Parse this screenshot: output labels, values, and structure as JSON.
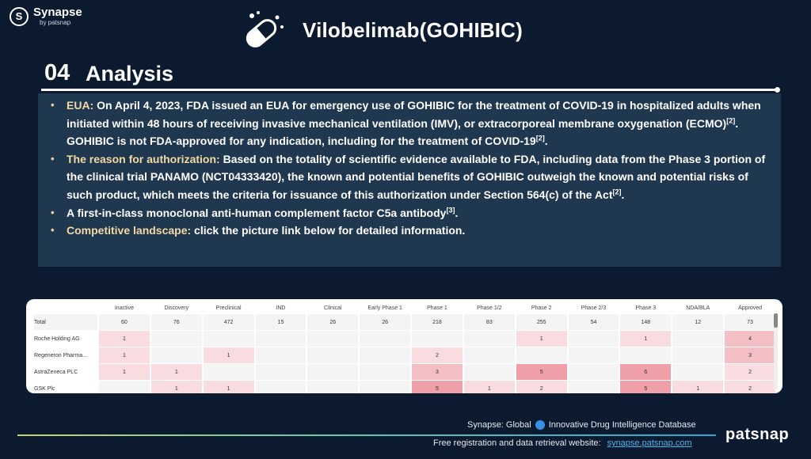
{
  "logo": {
    "mark": "S",
    "name": "Synapse",
    "sub": "by patsnap"
  },
  "title": {
    "icon": "pill-capsule-icon",
    "text": "Vilobelimab(GOHIBIC)"
  },
  "section": {
    "number": "04",
    "name": "Analysis"
  },
  "bullets": [
    {
      "label": "EUA:",
      "text": " On April 4, 2023, FDA issued an EUA for emergency use of GOHIBIC for the treatment of COVID-19 in hospitalized adults when initiated within 48 hours of receiving invasive mechanical ventilation (IMV), or extracorporeal membrane oxygenation (ECMO)",
      "ref1": "[2]",
      "text2": ". GOHIBIC is not FDA-approved for any indication, including for the treatment of COVID-19",
      "ref2": "[2]",
      "text3": "."
    },
    {
      "label": "The reason for authorization:",
      "text": " Based on the totality of scientific evidence available to FDA, including data from the Phase 3 portion of the clinical trial PANAMO (NCT04333420), the known and potential benefits of GOHIBIC outweigh the known and potential risks of such product, which meets the criteria for issuance of this authorization under Section 564(c) of the Act",
      "ref1": "[2]",
      "text2": ".",
      "ref2": "",
      "text3": ""
    },
    {
      "label": "",
      "text": "A first-in-class monoclonal anti-human complement factor C5a antibody",
      "ref1": "[3]",
      "text2": ".",
      "ref2": "",
      "text3": ""
    },
    {
      "label": "Competitive landscape:",
      "text": " click the picture link below for detailed information.",
      "ref1": "",
      "text2": "",
      "ref2": "",
      "text3": ""
    }
  ],
  "table": {
    "headers": [
      "",
      "Inactive",
      "Discovery",
      "Preclinical",
      "IND",
      "Clinical",
      "Early Phase 1",
      "Phase 1",
      "Phase 1/2",
      "Phase 2",
      "Phase 2/3",
      "Phase 3",
      "NDA/BLA",
      "Approved"
    ],
    "rows": [
      {
        "label": "Total",
        "cells": [
          "60",
          "76",
          "472",
          "15",
          "26",
          "26",
          "218",
          "83",
          "255",
          "54",
          "148",
          "12",
          "73"
        ],
        "levels": [
          0,
          0,
          0,
          0,
          0,
          0,
          0,
          0,
          0,
          0,
          0,
          0,
          0
        ]
      },
      {
        "label": "Roche Holding AG",
        "cells": [
          "1",
          "",
          "",
          "",
          "",
          "",
          "",
          "",
          "1",
          "",
          "1",
          "",
          "4"
        ],
        "levels": [
          1,
          0,
          0,
          0,
          0,
          0,
          0,
          0,
          1,
          0,
          1,
          0,
          2
        ]
      },
      {
        "label": "Regeneron Pharma...",
        "cells": [
          "1",
          "",
          "1",
          "",
          "",
          "",
          "2",
          "",
          "",
          "",
          "",
          "",
          "3"
        ],
        "levels": [
          1,
          0,
          1,
          0,
          0,
          0,
          1,
          0,
          0,
          0,
          0,
          0,
          2
        ]
      },
      {
        "label": "AstraZeneca PLC",
        "cells": [
          "1",
          "1",
          "",
          "",
          "",
          "",
          "3",
          "",
          "5",
          "",
          "6",
          "",
          "2"
        ],
        "levels": [
          1,
          1,
          0,
          0,
          0,
          0,
          2,
          0,
          3,
          0,
          3,
          0,
          1
        ]
      },
      {
        "label": "GSK Plc",
        "cells": [
          "",
          "1",
          "1",
          "",
          "",
          "",
          "5",
          "1",
          "2",
          "",
          "5",
          "1",
          "2"
        ],
        "levels": [
          0,
          1,
          1,
          0,
          0,
          0,
          3,
          1,
          1,
          0,
          3,
          1,
          1
        ]
      }
    ]
  },
  "footer": {
    "line1_a": "Synapse: Global",
    "line1_b": "Innovative Drug Intelligence Database",
    "line2": "Free registration and data retrieval website:",
    "link": "synapse.patsnap.com",
    "brand": "patsnap"
  },
  "colors": {
    "background": "#0b1a2f",
    "content_box": "#203750",
    "highlight": "#f3d9a4",
    "link": "#4fb4f0"
  }
}
